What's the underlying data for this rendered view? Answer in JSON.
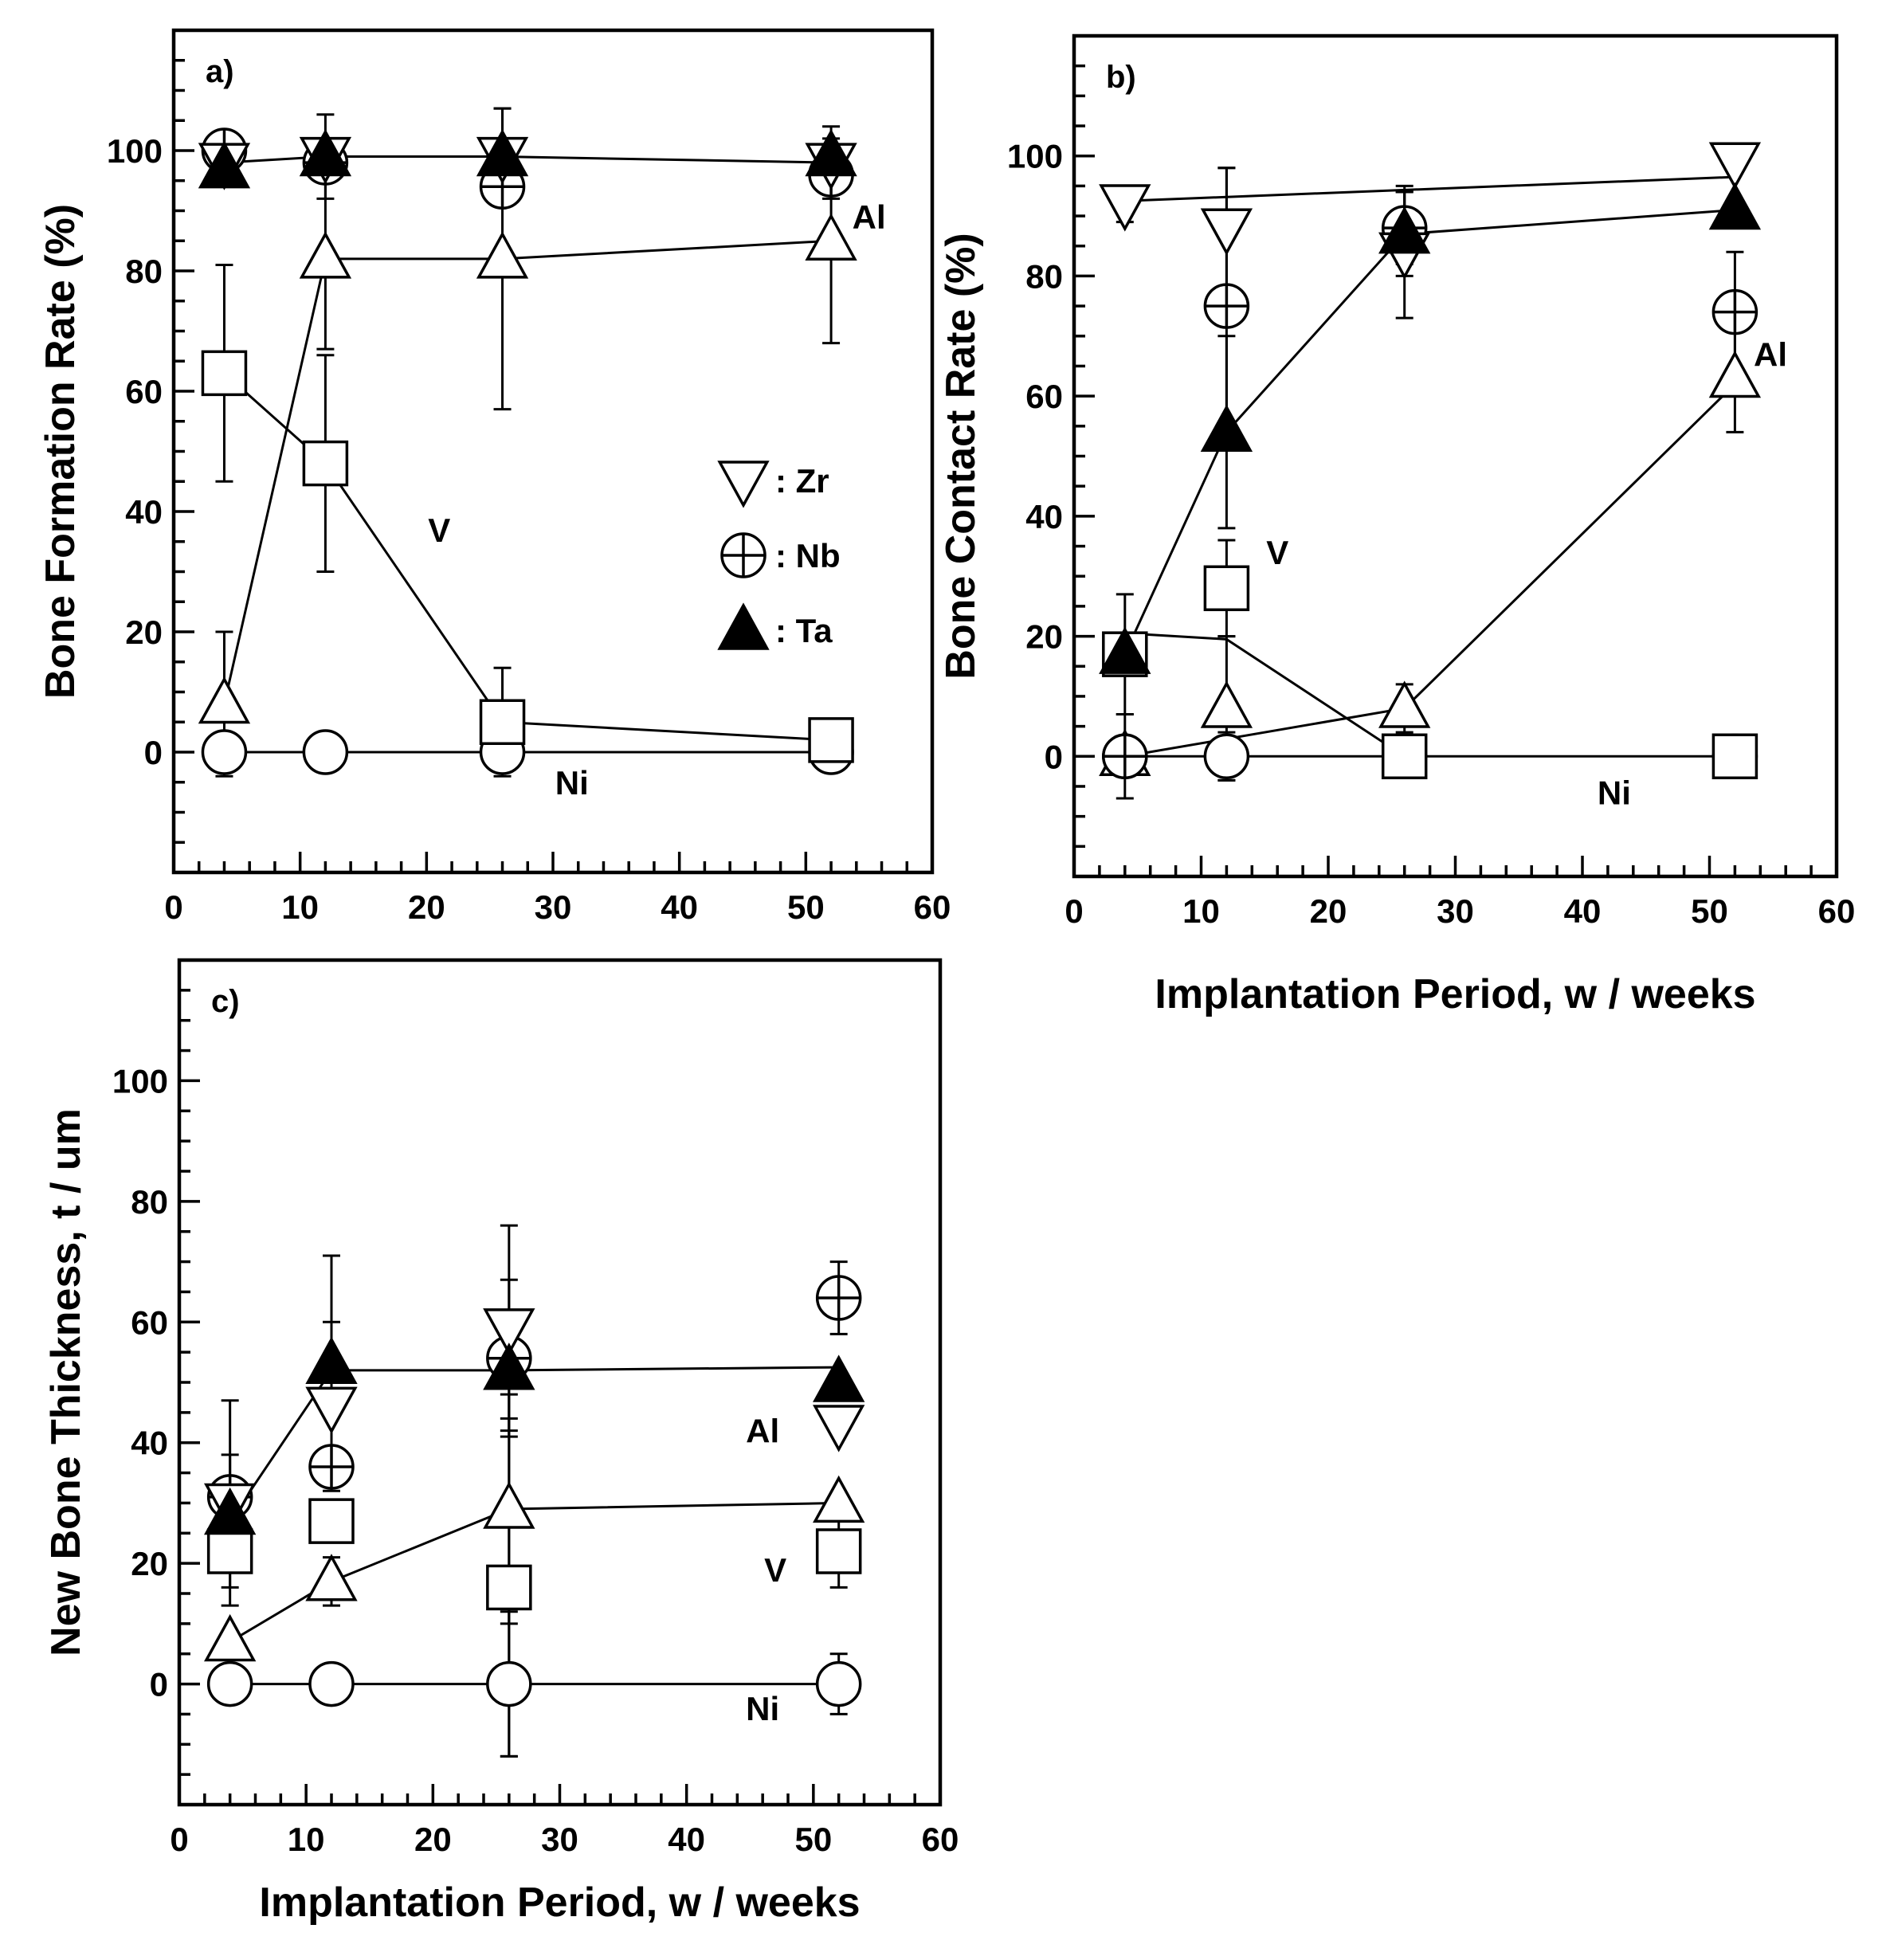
{
  "chart_data": [
    {
      "id": "a",
      "type": "scatter",
      "panel_label": "a)",
      "ylabel": "Bone Formation Rate (%)",
      "xlabel": "",
      "xlim": [
        0,
        60
      ],
      "ylim": [
        -20,
        120
      ],
      "xticks": [
        0,
        10,
        20,
        30,
        40,
        50,
        60
      ],
      "yticks": [
        0,
        20,
        40,
        60,
        80,
        100
      ],
      "legend": [
        {
          "name": "Zr",
          "text": ": Zr"
        },
        {
          "name": "Nb",
          "text": ": Nb"
        },
        {
          "name": "Ta",
          "text": ": Ta"
        }
      ],
      "series": [
        {
          "name": "Zr",
          "marker": "tri-down",
          "line": true,
          "x": [
            4,
            12,
            26,
            52
          ],
          "y": [
            98,
            99,
            99,
            98
          ],
          "err": [
            0,
            7,
            8,
            6
          ]
        },
        {
          "name": "Nb",
          "marker": "circle-plus",
          "line": false,
          "x": [
            4,
            12,
            26,
            52
          ],
          "y": [
            100,
            98,
            94,
            96
          ],
          "err": [
            0,
            0,
            0,
            0
          ]
        },
        {
          "name": "Ta",
          "marker": "tri-up-filled",
          "line": false,
          "x": [
            4,
            12,
            26,
            52
          ],
          "y": [
            97,
            99,
            99,
            99
          ],
          "err": [
            0,
            0,
            0,
            0
          ]
        },
        {
          "name": "Al",
          "marker": "tri-up",
          "line": true,
          "x": [
            4,
            12,
            26,
            52
          ],
          "y": [
            8,
            82,
            82,
            85
          ],
          "err": [
            12,
            15,
            25,
            17
          ]
        },
        {
          "name": "V",
          "marker": "square",
          "line": true,
          "x": [
            4,
            12,
            26,
            52
          ],
          "y": [
            63,
            48,
            5,
            2
          ],
          "err": [
            18,
            18,
            9,
            0
          ]
        },
        {
          "name": "Ni",
          "marker": "circle",
          "line": true,
          "x": [
            4,
            12,
            26,
            52
          ],
          "y": [
            0,
            0,
            0,
            0
          ],
          "err": [
            0,
            0,
            0,
            0
          ]
        }
      ],
      "annotations": [
        {
          "text": "Al",
          "x": 55,
          "y": 87
        },
        {
          "text": "V",
          "x": 21,
          "y": 35
        },
        {
          "text": "Ni",
          "x": 31.5,
          "y": -7
        }
      ]
    },
    {
      "id": "b",
      "type": "scatter",
      "panel_label": "b)",
      "ylabel": "Bone Contact Rate (%)",
      "xlabel": "Implantation Period, w / weeks",
      "xlim": [
        0,
        60
      ],
      "ylim": [
        -20,
        120
      ],
      "xticks": [
        0,
        10,
        20,
        30,
        40,
        50,
        60
      ],
      "yticks": [
        0,
        20,
        40,
        60,
        80,
        100
      ],
      "series": [
        {
          "name": "Zr",
          "marker": "tri-down",
          "line": true,
          "x": [
            4,
            12,
            26,
            52
          ],
          "y": [
            92,
            88,
            84,
            99
          ],
          "err": [
            3,
            10,
            11,
            0
          ]
        },
        {
          "name": "Nb",
          "marker": "circle-plus",
          "line": false,
          "x": [
            4,
            12,
            26,
            52
          ],
          "y": [
            0,
            75,
            88,
            74
          ],
          "err": [
            7,
            23,
            6,
            10
          ]
        },
        {
          "name": "Ta",
          "marker": "tri-up-filled",
          "line": true,
          "x": [
            4,
            12,
            26,
            52
          ],
          "y": [
            17,
            54,
            87,
            91
          ],
          "err": [
            10,
            16,
            7,
            0
          ]
        },
        {
          "name": "Al",
          "marker": "tri-up",
          "line": true,
          "x": [
            4,
            12,
            26,
            52
          ],
          "y": [
            0,
            8,
            8,
            63
          ],
          "err": [
            0,
            12,
            4,
            9
          ]
        },
        {
          "name": "V",
          "marker": "square",
          "line": true,
          "x": [
            4,
            12,
            26,
            52
          ],
          "y": [
            17,
            28,
            0,
            0
          ],
          "err": [
            0,
            8,
            0,
            0
          ]
        },
        {
          "name": "Ni",
          "marker": "circle",
          "line": true,
          "x": [
            4,
            12,
            26,
            52
          ],
          "y": [
            0,
            0,
            0,
            0
          ],
          "err": [
            0,
            4,
            0,
            0
          ]
        }
      ],
      "lines_extra": [
        {
          "name": "Zr-trend",
          "x": [
            4,
            52
          ],
          "y": [
            92.5,
            96.5
          ]
        },
        {
          "name": "V-trend",
          "x": [
            4,
            12,
            26
          ],
          "y": [
            20.5,
            19.5,
            0
          ]
        },
        {
          "name": "Al-trend",
          "x": [
            4,
            26,
            52
          ],
          "y": [
            0,
            8,
            62
          ]
        },
        {
          "name": "Ni-trend",
          "x": [
            4,
            52
          ],
          "y": [
            0,
            0
          ]
        }
      ],
      "annotations": [
        {
          "text": "Al",
          "x": 54.8,
          "y": 65
        },
        {
          "text": "V",
          "x": 16,
          "y": 32
        },
        {
          "text": "Ni",
          "x": 42.5,
          "y": -8
        }
      ]
    },
    {
      "id": "c",
      "type": "scatter",
      "panel_label": "c)",
      "ylabel": "New Bone Thickness, t / um",
      "xlabel": "Implantation Period, w / weeks",
      "xlim": [
        0,
        60
      ],
      "ylim": [
        -20,
        120
      ],
      "xticks": [
        0,
        10,
        20,
        30,
        40,
        50,
        60
      ],
      "yticks": [
        0,
        20,
        40,
        60,
        80,
        100
      ],
      "series": [
        {
          "name": "Zr",
          "marker": "tri-down",
          "line": false,
          "x": [
            4,
            12,
            26,
            52
          ],
          "y": [
            30,
            46,
            59,
            43
          ],
          "err": [
            17,
            14,
            17,
            0
          ]
        },
        {
          "name": "Nb",
          "marker": "circle-plus",
          "line": false,
          "x": [
            4,
            12,
            26,
            52
          ],
          "y": [
            31,
            36,
            54,
            64
          ],
          "err": [
            7,
            0,
            13,
            6
          ]
        },
        {
          "name": "Ta",
          "marker": "tri-up-filled",
          "line": true,
          "x": [
            4,
            12,
            26,
            52
          ],
          "y": [
            28,
            53,
            52,
            50
          ],
          "err": [
            0,
            18,
            0,
            0
          ]
        },
        {
          "name": "Al",
          "marker": "tri-up",
          "line": true,
          "x": [
            4,
            12,
            26,
            52
          ],
          "y": [
            7,
            17,
            29,
            30
          ],
          "err": [
            0,
            4,
            19,
            0
          ]
        },
        {
          "name": "V",
          "marker": "square",
          "line": false,
          "x": [
            4,
            12,
            26,
            52
          ],
          "y": [
            22,
            27,
            16,
            22
          ],
          "err": [
            6,
            0,
            28,
            6
          ]
        },
        {
          "name": "Ni",
          "marker": "circle",
          "line": true,
          "x": [
            4,
            12,
            26,
            52
          ],
          "y": [
            0,
            0,
            0,
            0
          ],
          "err": [
            0,
            0,
            12,
            5
          ]
        }
      ],
      "lines_extra": [
        {
          "name": "Ta-trend",
          "x": [
            4,
            12,
            26,
            52
          ],
          "y": [
            27,
            52,
            52,
            52.5
          ]
        }
      ],
      "annotations": [
        {
          "text": "Al",
          "x": 46,
          "y": 40
        },
        {
          "text": "V",
          "x": 47,
          "y": 17
        },
        {
          "text": "Ni",
          "x": 46,
          "y": -6
        }
      ]
    }
  ]
}
